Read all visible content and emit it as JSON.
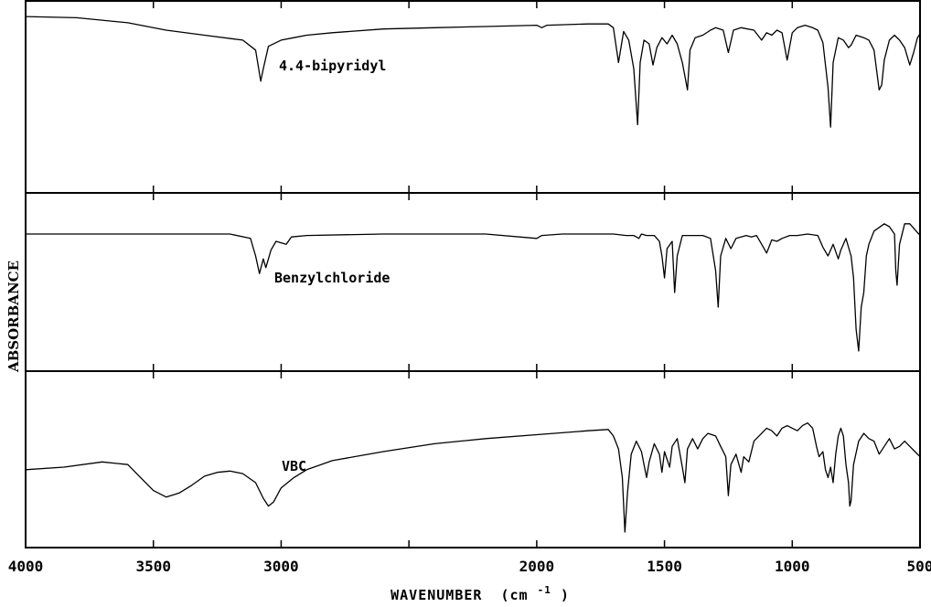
{
  "chart_data": {
    "type": "line",
    "title": "",
    "xlabel": "WAVENUMBER",
    "xlabel_unit_base": "(cm",
    "xlabel_unit_exp": "-1",
    "xlabel_unit_close": ")",
    "ylabel": "ABSORBANCE",
    "xlim": [
      4000,
      500
    ],
    "x_reversed": true,
    "grid": false,
    "legend": "none",
    "xticks": [
      {
        "value": 4000,
        "label": "4000"
      },
      {
        "value": 3500,
        "label": "3500"
      },
      {
        "value": 3000,
        "label": "3000"
      },
      {
        "value": 2000,
        "label": "2000"
      },
      {
        "value": 1500,
        "label": "1500"
      },
      {
        "value": 1000,
        "label": "1000"
      },
      {
        "value": 500,
        "label": "500"
      }
    ],
    "minor_xticks": [
      4000,
      3500,
      3000,
      2500,
      2000,
      1500,
      1000,
      500
    ],
    "series": [
      {
        "name": "4.4-bipyridyl",
        "ylim": [
          0,
          1
        ],
        "points": [
          [
            4000,
            0.03
          ],
          [
            3800,
            0.04
          ],
          [
            3600,
            0.08
          ],
          [
            3450,
            0.14
          ],
          [
            3300,
            0.18
          ],
          [
            3150,
            0.22
          ],
          [
            3100,
            0.3
          ],
          [
            3080,
            0.55
          ],
          [
            3070,
            0.45
          ],
          [
            3050,
            0.27
          ],
          [
            3000,
            0.22
          ],
          [
            2950,
            0.2
          ],
          [
            2900,
            0.18
          ],
          [
            2800,
            0.16
          ],
          [
            2600,
            0.13
          ],
          [
            2400,
            0.12
          ],
          [
            2200,
            0.11
          ],
          [
            2000,
            0.1
          ],
          [
            1980,
            0.12
          ],
          [
            1960,
            0.1
          ],
          [
            1800,
            0.09
          ],
          [
            1720,
            0.09
          ],
          [
            1700,
            0.12
          ],
          [
            1680,
            0.4
          ],
          [
            1660,
            0.15
          ],
          [
            1640,
            0.22
          ],
          [
            1620,
            0.45
          ],
          [
            1605,
            0.9
          ],
          [
            1595,
            0.4
          ],
          [
            1580,
            0.22
          ],
          [
            1560,
            0.25
          ],
          [
            1545,
            0.42
          ],
          [
            1530,
            0.28
          ],
          [
            1510,
            0.2
          ],
          [
            1490,
            0.25
          ],
          [
            1470,
            0.18
          ],
          [
            1450,
            0.25
          ],
          [
            1430,
            0.4
          ],
          [
            1410,
            0.62
          ],
          [
            1400,
            0.3
          ],
          [
            1380,
            0.2
          ],
          [
            1350,
            0.18
          ],
          [
            1320,
            0.14
          ],
          [
            1300,
            0.12
          ],
          [
            1270,
            0.14
          ],
          [
            1250,
            0.32
          ],
          [
            1230,
            0.14
          ],
          [
            1200,
            0.12
          ],
          [
            1150,
            0.14
          ],
          [
            1120,
            0.22
          ],
          [
            1100,
            0.16
          ],
          [
            1080,
            0.18
          ],
          [
            1060,
            0.14
          ],
          [
            1040,
            0.16
          ],
          [
            1020,
            0.38
          ],
          [
            1000,
            0.16
          ],
          [
            980,
            0.12
          ],
          [
            950,
            0.1
          ],
          [
            920,
            0.12
          ],
          [
            900,
            0.14
          ],
          [
            880,
            0.24
          ],
          [
            860,
            0.6
          ],
          [
            850,
            0.92
          ],
          [
            840,
            0.4
          ],
          [
            820,
            0.2
          ],
          [
            800,
            0.22
          ],
          [
            780,
            0.28
          ],
          [
            770,
            0.26
          ],
          [
            750,
            0.18
          ],
          [
            720,
            0.2
          ],
          [
            700,
            0.22
          ],
          [
            680,
            0.3
          ],
          [
            660,
            0.62
          ],
          [
            650,
            0.58
          ],
          [
            640,
            0.38
          ],
          [
            620,
            0.22
          ],
          [
            600,
            0.18
          ],
          [
            580,
            0.22
          ],
          [
            560,
            0.28
          ],
          [
            540,
            0.42
          ],
          [
            525,
            0.32
          ],
          [
            510,
            0.2
          ],
          [
            500,
            0.17
          ]
        ]
      },
      {
        "name": "Benzylchloride",
        "ylim": [
          0,
          1
        ],
        "points": [
          [
            4000,
            0.15
          ],
          [
            3700,
            0.15
          ],
          [
            3400,
            0.15
          ],
          [
            3200,
            0.15
          ],
          [
            3120,
            0.18
          ],
          [
            3100,
            0.3
          ],
          [
            3085,
            0.42
          ],
          [
            3070,
            0.32
          ],
          [
            3060,
            0.38
          ],
          [
            3040,
            0.26
          ],
          [
            3020,
            0.2
          ],
          [
            2980,
            0.22
          ],
          [
            2960,
            0.17
          ],
          [
            2900,
            0.16
          ],
          [
            2600,
            0.15
          ],
          [
            2200,
            0.15
          ],
          [
            2000,
            0.18
          ],
          [
            1980,
            0.16
          ],
          [
            1900,
            0.15
          ],
          [
            1700,
            0.15
          ],
          [
            1650,
            0.16
          ],
          [
            1620,
            0.16
          ],
          [
            1600,
            0.18
          ],
          [
            1590,
            0.15
          ],
          [
            1570,
            0.16
          ],
          [
            1540,
            0.16
          ],
          [
            1520,
            0.2
          ],
          [
            1510,
            0.3
          ],
          [
            1500,
            0.45
          ],
          [
            1490,
            0.25
          ],
          [
            1470,
            0.2
          ],
          [
            1460,
            0.55
          ],
          [
            1450,
            0.3
          ],
          [
            1430,
            0.16
          ],
          [
            1400,
            0.16
          ],
          [
            1350,
            0.16
          ],
          [
            1320,
            0.18
          ],
          [
            1300,
            0.4
          ],
          [
            1290,
            0.65
          ],
          [
            1280,
            0.3
          ],
          [
            1260,
            0.18
          ],
          [
            1240,
            0.25
          ],
          [
            1220,
            0.18
          ],
          [
            1180,
            0.16
          ],
          [
            1160,
            0.17
          ],
          [
            1140,
            0.16
          ],
          [
            1120,
            0.22
          ],
          [
            1100,
            0.28
          ],
          [
            1080,
            0.19
          ],
          [
            1060,
            0.2
          ],
          [
            1040,
            0.18
          ],
          [
            1010,
            0.16
          ],
          [
            980,
            0.16
          ],
          [
            940,
            0.15
          ],
          [
            900,
            0.16
          ],
          [
            880,
            0.24
          ],
          [
            860,
            0.3
          ],
          [
            840,
            0.22
          ],
          [
            820,
            0.32
          ],
          [
            810,
            0.26
          ],
          [
            790,
            0.18
          ],
          [
            770,
            0.3
          ],
          [
            760,
            0.45
          ],
          [
            750,
            0.8
          ],
          [
            740,
            0.95
          ],
          [
            730,
            0.65
          ],
          [
            720,
            0.55
          ],
          [
            710,
            0.3
          ],
          [
            700,
            0.22
          ],
          [
            680,
            0.13
          ],
          [
            640,
            0.08
          ],
          [
            620,
            0.1
          ],
          [
            600,
            0.15
          ],
          [
            595,
            0.4
          ],
          [
            590,
            0.5
          ],
          [
            580,
            0.22
          ],
          [
            560,
            0.08
          ],
          [
            540,
            0.08
          ],
          [
            520,
            0.12
          ],
          [
            505,
            0.15
          ],
          [
            500,
            0.14
          ]
        ]
      },
      {
        "name": "VBC",
        "ylim": [
          0,
          1
        ],
        "points": [
          [
            4000,
            0.52
          ],
          [
            3850,
            0.5
          ],
          [
            3700,
            0.46
          ],
          [
            3600,
            0.48
          ],
          [
            3550,
            0.58
          ],
          [
            3500,
            0.68
          ],
          [
            3450,
            0.73
          ],
          [
            3400,
            0.7
          ],
          [
            3350,
            0.64
          ],
          [
            3300,
            0.57
          ],
          [
            3250,
            0.54
          ],
          [
            3200,
            0.53
          ],
          [
            3150,
            0.55
          ],
          [
            3100,
            0.62
          ],
          [
            3070,
            0.74
          ],
          [
            3050,
            0.8
          ],
          [
            3030,
            0.77
          ],
          [
            3000,
            0.66
          ],
          [
            2950,
            0.58
          ],
          [
            2900,
            0.52
          ],
          [
            2800,
            0.45
          ],
          [
            2600,
            0.38
          ],
          [
            2400,
            0.32
          ],
          [
            2200,
            0.28
          ],
          [
            2000,
            0.25
          ],
          [
            1800,
            0.22
          ],
          [
            1720,
            0.21
          ],
          [
            1700,
            0.26
          ],
          [
            1680,
            0.36
          ],
          [
            1665,
            0.58
          ],
          [
            1655,
            1.0
          ],
          [
            1645,
            0.7
          ],
          [
            1630,
            0.4
          ],
          [
            1610,
            0.3
          ],
          [
            1590,
            0.38
          ],
          [
            1570,
            0.58
          ],
          [
            1560,
            0.46
          ],
          [
            1540,
            0.32
          ],
          [
            1520,
            0.4
          ],
          [
            1510,
            0.54
          ],
          [
            1500,
            0.38
          ],
          [
            1480,
            0.5
          ],
          [
            1470,
            0.34
          ],
          [
            1450,
            0.28
          ],
          [
            1430,
            0.5
          ],
          [
            1420,
            0.62
          ],
          [
            1410,
            0.36
          ],
          [
            1390,
            0.28
          ],
          [
            1370,
            0.36
          ],
          [
            1350,
            0.28
          ],
          [
            1330,
            0.24
          ],
          [
            1300,
            0.26
          ],
          [
            1280,
            0.34
          ],
          [
            1260,
            0.42
          ],
          [
            1250,
            0.72
          ],
          [
            1240,
            0.48
          ],
          [
            1220,
            0.4
          ],
          [
            1200,
            0.54
          ],
          [
            1190,
            0.42
          ],
          [
            1170,
            0.46
          ],
          [
            1150,
            0.3
          ],
          [
            1120,
            0.24
          ],
          [
            1100,
            0.2
          ],
          [
            1080,
            0.22
          ],
          [
            1060,
            0.26
          ],
          [
            1040,
            0.2
          ],
          [
            1020,
            0.18
          ],
          [
            1000,
            0.2
          ],
          [
            980,
            0.22
          ],
          [
            960,
            0.18
          ],
          [
            940,
            0.16
          ],
          [
            920,
            0.2
          ],
          [
            905,
            0.34
          ],
          [
            895,
            0.42
          ],
          [
            880,
            0.38
          ],
          [
            870,
            0.52
          ],
          [
            860,
            0.58
          ],
          [
            850,
            0.5
          ],
          [
            840,
            0.62
          ],
          [
            830,
            0.4
          ],
          [
            820,
            0.26
          ],
          [
            810,
            0.2
          ],
          [
            800,
            0.26
          ],
          [
            790,
            0.48
          ],
          [
            780,
            0.62
          ],
          [
            775,
            0.8
          ],
          [
            770,
            0.76
          ],
          [
            760,
            0.48
          ],
          [
            740,
            0.3
          ],
          [
            720,
            0.24
          ],
          [
            700,
            0.28
          ],
          [
            680,
            0.3
          ],
          [
            660,
            0.4
          ],
          [
            640,
            0.34
          ],
          [
            620,
            0.28
          ],
          [
            600,
            0.36
          ],
          [
            580,
            0.34
          ],
          [
            560,
            0.3
          ],
          [
            540,
            0.34
          ],
          [
            520,
            0.38
          ],
          [
            500,
            0.42
          ]
        ]
      }
    ]
  }
}
